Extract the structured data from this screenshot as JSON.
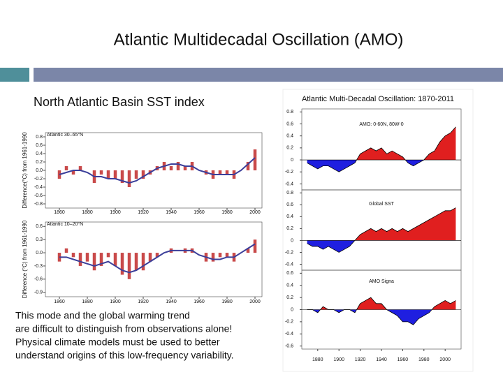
{
  "slide": {
    "title": "Atlantic Multidecadal Oscillation (AMO)",
    "subtitle": "North Atlantic Basin SST index",
    "figure_title": "Atlantic Multi-Decadal Oscillation: 1870-2011",
    "body": [
      "This mode and the global warming trend",
      "are difficult to distinguish from observations alone!",
      "Physical climate models must be used to better",
      "understand origins of this low-frequency variability."
    ]
  },
  "chart_data": [
    {
      "type": "bar",
      "title": "Atlantic 30–65°N",
      "y_label": "Difference(°C) from 1961-1990",
      "color": "#c94a4a",
      "line_color": "#3b3f9a",
      "x": [
        1860,
        1865,
        1870,
        1875,
        1880,
        1885,
        1890,
        1895,
        1900,
        1905,
        1910,
        1915,
        1920,
        1925,
        1930,
        1935,
        1940,
        1945,
        1950,
        1955,
        1960,
        1965,
        1970,
        1975,
        1980,
        1985,
        1990,
        1995,
        2000
      ],
      "values": [
        -0.2,
        0.1,
        -0.1,
        0.1,
        0.0,
        -0.3,
        -0.1,
        -0.2,
        -0.2,
        -0.3,
        -0.4,
        -0.2,
        -0.2,
        -0.1,
        0.1,
        0.2,
        0.1,
        0.2,
        0.1,
        0.2,
        0.0,
        -0.1,
        -0.2,
        -0.1,
        -0.1,
        -0.2,
        0.0,
        0.2,
        0.5
      ],
      "smooth": [
        -0.1,
        -0.05,
        0,
        0,
        -0.05,
        -0.15,
        -0.15,
        -0.2,
        -0.2,
        -0.25,
        -0.3,
        -0.25,
        -0.15,
        -0.05,
        0.05,
        0.1,
        0.15,
        0.15,
        0.1,
        0.1,
        0.0,
        -0.05,
        -0.1,
        -0.1,
        -0.1,
        -0.1,
        0.0,
        0.15,
        0.3
      ],
      "xlim": [
        1850,
        2005
      ],
      "xticks": [
        1860,
        1880,
        1900,
        1920,
        1940,
        1960,
        1980,
        2000
      ],
      "ylim": [
        -0.9,
        0.9
      ],
      "yticks": [
        0.8,
        0.6,
        0.4,
        0.2,
        {
          "value": 0,
          "label": "0.0"
        },
        -0.2,
        -0.4,
        -0.6,
        -0.8
      ]
    },
    {
      "type": "bar",
      "title": "Atlantic 10–20°N",
      "y_label": "Difference (°C) from 1961-1990",
      "color": "#c94a4a",
      "line_color": "#3b3f9a",
      "x": [
        1860,
        1865,
        1870,
        1875,
        1880,
        1885,
        1890,
        1895,
        1900,
        1905,
        1910,
        1915,
        1920,
        1925,
        1930,
        1935,
        1940,
        1945,
        1950,
        1955,
        1960,
        1965,
        1970,
        1975,
        1980,
        1985,
        1990,
        1995,
        2000
      ],
      "values": [
        -0.2,
        0.1,
        -0.1,
        -0.3,
        -0.2,
        -0.4,
        -0.3,
        -0.1,
        -0.3,
        -0.5,
        -0.6,
        -0.4,
        -0.4,
        -0.2,
        -0.1,
        0.0,
        0.1,
        0.0,
        0.1,
        0.1,
        0.0,
        -0.2,
        -0.2,
        -0.1,
        -0.1,
        -0.2,
        0.0,
        0.1,
        0.3
      ],
      "smooth": [
        -0.1,
        -0.1,
        -0.15,
        -0.2,
        -0.25,
        -0.3,
        -0.25,
        -0.2,
        -0.3,
        -0.4,
        -0.45,
        -0.4,
        -0.3,
        -0.2,
        -0.1,
        0.0,
        0.05,
        0.05,
        0.05,
        0.05,
        -0.05,
        -0.1,
        -0.15,
        -0.15,
        -0.1,
        -0.1,
        0.0,
        0.1,
        0.2
      ],
      "xlim": [
        1850,
        2005
      ],
      "xticks": [
        1860,
        1880,
        1900,
        1920,
        1940,
        1960,
        1980,
        2000
      ],
      "ylim": [
        -1.0,
        0.7
      ],
      "yticks": [
        0.6,
        0.3,
        {
          "value": 0,
          "label": "0.0"
        },
        -0.3,
        -0.6,
        -0.9
      ]
    },
    {
      "type": "area",
      "title": "AMO: 0-60N, 80W-0",
      "pos_color": "#e01f1f",
      "neg_color": "#1f1fe0",
      "x": [
        1870,
        1875,
        1880,
        1885,
        1890,
        1895,
        1900,
        1905,
        1910,
        1915,
        1920,
        1925,
        1930,
        1935,
        1940,
        1945,
        1950,
        1955,
        1960,
        1965,
        1970,
        1975,
        1980,
        1985,
        1990,
        1995,
        2000,
        2005,
        2010
      ],
      "values": [
        -0.05,
        -0.1,
        -0.15,
        -0.1,
        -0.1,
        -0.15,
        -0.2,
        -0.15,
        -0.1,
        -0.05,
        0.1,
        0.15,
        0.2,
        0.15,
        0.2,
        0.1,
        0.15,
        0.1,
        0.05,
        -0.05,
        -0.1,
        -0.05,
        0.0,
        0.1,
        0.15,
        0.3,
        0.4,
        0.45,
        0.55
      ],
      "xlim": [
        1865,
        2015
      ],
      "ylim": [
        -0.5,
        0.85
      ],
      "yticks": [
        0.8,
        0.6,
        0.4,
        0.2,
        0,
        -0.2,
        -0.4
      ]
    },
    {
      "type": "area",
      "title": "Global SST",
      "pos_color": "#e01f1f",
      "neg_color": "#1f1fe0",
      "x": [
        1870,
        1875,
        1880,
        1885,
        1890,
        1895,
        1900,
        1905,
        1910,
        1915,
        1920,
        1925,
        1930,
        1935,
        1940,
        1945,
        1950,
        1955,
        1960,
        1965,
        1970,
        1975,
        1980,
        1985,
        1990,
        1995,
        2000,
        2005,
        2010
      ],
      "values": [
        -0.05,
        -0.1,
        -0.1,
        -0.15,
        -0.1,
        -0.15,
        -0.2,
        -0.15,
        -0.1,
        0.0,
        0.1,
        0.15,
        0.2,
        0.15,
        0.2,
        0.15,
        0.2,
        0.15,
        0.2,
        0.15,
        0.2,
        0.25,
        0.3,
        0.35,
        0.4,
        0.45,
        0.5,
        0.5,
        0.55
      ],
      "xlim": [
        1865,
        2015
      ],
      "ylim": [
        -0.5,
        0.85
      ],
      "yticks": [
        0.8,
        0.6,
        0.4,
        0.2,
        0,
        -0.2,
        -0.4
      ]
    },
    {
      "type": "area",
      "title": "AMO Signa",
      "pos_color": "#e01f1f",
      "neg_color": "#1f1fe0",
      "x": [
        1870,
        1875,
        1880,
        1885,
        1890,
        1895,
        1900,
        1905,
        1910,
        1915,
        1920,
        1925,
        1930,
        1935,
        1940,
        1945,
        1950,
        1955,
        1960,
        1965,
        1970,
        1975,
        1980,
        1985,
        1990,
        1995,
        2000,
        2005,
        2010
      ],
      "values": [
        0.0,
        0.0,
        -0.05,
        0.05,
        0.0,
        0.0,
        -0.05,
        0.0,
        0.0,
        -0.05,
        0.1,
        0.15,
        0.2,
        0.1,
        0.1,
        0.0,
        -0.05,
        -0.1,
        -0.2,
        -0.2,
        -0.25,
        -0.15,
        -0.1,
        -0.05,
        0.05,
        0.1,
        0.15,
        0.1,
        0.15
      ],
      "xlim": [
        1865,
        2015
      ],
      "ylim": [
        -0.65,
        0.65
      ],
      "yticks": [
        0.6,
        0.4,
        0.2,
        0,
        -0.2,
        -0.4,
        -0.6
      ],
      "xticks": [
        1880,
        1900,
        1920,
        1940,
        1960,
        1980,
        2000
      ]
    }
  ]
}
